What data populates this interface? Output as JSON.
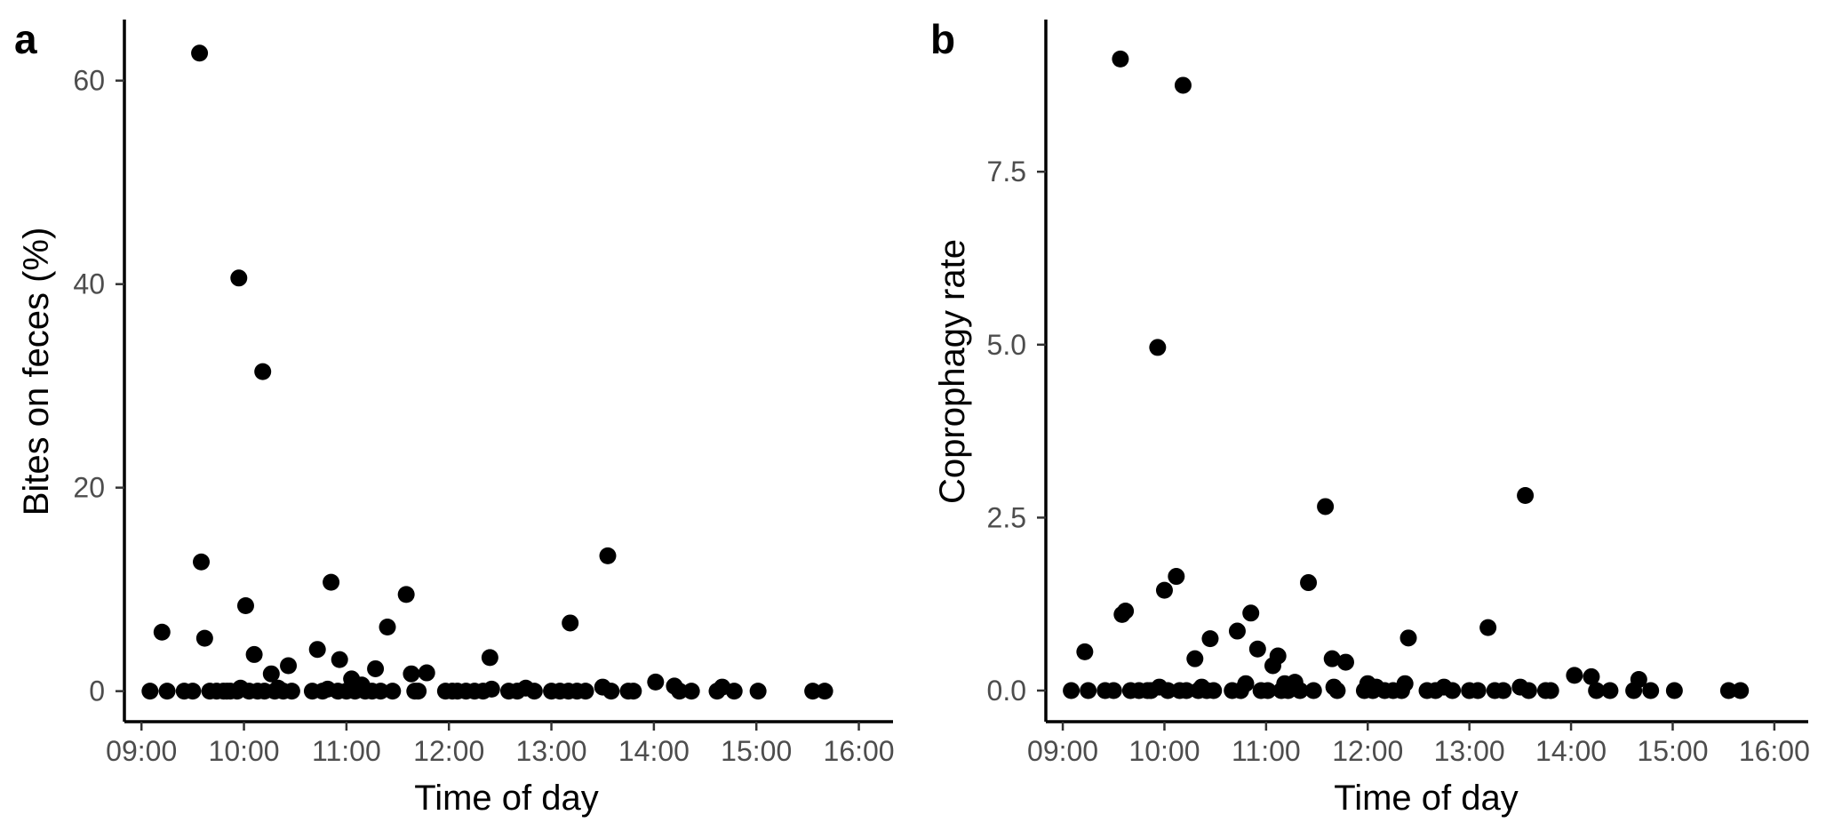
{
  "chart_data": [
    {
      "type": "scatter",
      "panel_label": "a",
      "xlabel": "Time of day",
      "ylabel": "Bites on feces (%)",
      "xlim": [
        "08:50",
        "16:20"
      ],
      "ylim": [
        -3,
        66
      ],
      "x_ticks": [
        "09:00",
        "10:00",
        "11:00",
        "12:00",
        "13:00",
        "14:00",
        "15:00",
        "16:00"
      ],
      "y_ticks": [
        0,
        20,
        40,
        60
      ],
      "grid": false,
      "marker_color": "#000000",
      "points": [
        {
          "x": "09:05",
          "y": 0
        },
        {
          "x": "09:12",
          "y": 5.8
        },
        {
          "x": "09:15",
          "y": 0
        },
        {
          "x": "09:25",
          "y": 0
        },
        {
          "x": "09:30",
          "y": 0
        },
        {
          "x": "09:34",
          "y": 62.7
        },
        {
          "x": "09:35",
          "y": 12.7
        },
        {
          "x": "09:37",
          "y": 5.2
        },
        {
          "x": "09:40",
          "y": 0
        },
        {
          "x": "09:44",
          "y": 0
        },
        {
          "x": "09:48",
          "y": 0
        },
        {
          "x": "09:50",
          "y": 0
        },
        {
          "x": "09:52",
          "y": 0
        },
        {
          "x": "09:56",
          "y": 0
        },
        {
          "x": "09:57",
          "y": 40.6
        },
        {
          "x": "09:58",
          "y": 0.3
        },
        {
          "x": "10:01",
          "y": 8.4
        },
        {
          "x": "10:03",
          "y": 0
        },
        {
          "x": "10:06",
          "y": 3.6
        },
        {
          "x": "10:08",
          "y": 0
        },
        {
          "x": "10:11",
          "y": 31.4
        },
        {
          "x": "10:12",
          "y": 0
        },
        {
          "x": "10:16",
          "y": 1.7
        },
        {
          "x": "10:18",
          "y": 0
        },
        {
          "x": "10:20",
          "y": 0.3
        },
        {
          "x": "10:23",
          "y": 0
        },
        {
          "x": "10:26",
          "y": 2.5
        },
        {
          "x": "10:28",
          "y": 0
        },
        {
          "x": "10:40",
          "y": 0
        },
        {
          "x": "10:43",
          "y": 4.1
        },
        {
          "x": "10:46",
          "y": 0
        },
        {
          "x": "10:49",
          "y": 0.2
        },
        {
          "x": "10:51",
          "y": 10.7
        },
        {
          "x": "10:55",
          "y": 0
        },
        {
          "x": "10:56",
          "y": 3.1
        },
        {
          "x": "11:00",
          "y": 0
        },
        {
          "x": "11:03",
          "y": 1.2
        },
        {
          "x": "11:05",
          "y": 0
        },
        {
          "x": "11:07",
          "y": 0.5
        },
        {
          "x": "11:09",
          "y": 0.6
        },
        {
          "x": "11:11",
          "y": 0
        },
        {
          "x": "11:15",
          "y": 0
        },
        {
          "x": "11:17",
          "y": 2.2
        },
        {
          "x": "11:20",
          "y": 0
        },
        {
          "x": "11:24",
          "y": 6.3
        },
        {
          "x": "11:27",
          "y": 0
        },
        {
          "x": "11:35",
          "y": 9.5
        },
        {
          "x": "11:38",
          "y": 1.7
        },
        {
          "x": "11:40",
          "y": 0
        },
        {
          "x": "11:42",
          "y": 0
        },
        {
          "x": "11:47",
          "y": 1.8
        },
        {
          "x": "11:58",
          "y": 0
        },
        {
          "x": "12:02",
          "y": 0
        },
        {
          "x": "12:05",
          "y": 0
        },
        {
          "x": "12:10",
          "y": 0
        },
        {
          "x": "12:15",
          "y": 0
        },
        {
          "x": "12:20",
          "y": 0
        },
        {
          "x": "12:24",
          "y": 3.3
        },
        {
          "x": "12:25",
          "y": 0.2
        },
        {
          "x": "12:35",
          "y": 0
        },
        {
          "x": "12:40",
          "y": 0
        },
        {
          "x": "12:45",
          "y": 0.3
        },
        {
          "x": "12:50",
          "y": 0
        },
        {
          "x": "13:00",
          "y": 0
        },
        {
          "x": "13:05",
          "y": 0
        },
        {
          "x": "13:10",
          "y": 0
        },
        {
          "x": "13:11",
          "y": 6.7
        },
        {
          "x": "13:15",
          "y": 0
        },
        {
          "x": "13:20",
          "y": 0
        },
        {
          "x": "13:30",
          "y": 0.4
        },
        {
          "x": "13:33",
          "y": 13.3
        },
        {
          "x": "13:35",
          "y": 0
        },
        {
          "x": "13:45",
          "y": 0
        },
        {
          "x": "13:48",
          "y": 0
        },
        {
          "x": "14:01",
          "y": 0.9
        },
        {
          "x": "14:12",
          "y": 0.5
        },
        {
          "x": "14:15",
          "y": 0
        },
        {
          "x": "14:22",
          "y": 0
        },
        {
          "x": "14:37",
          "y": 0
        },
        {
          "x": "14:40",
          "y": 0.4
        },
        {
          "x": "14:47",
          "y": 0
        },
        {
          "x": "15:01",
          "y": 0
        },
        {
          "x": "15:33",
          "y": 0
        },
        {
          "x": "15:40",
          "y": 0
        }
      ]
    },
    {
      "type": "scatter",
      "panel_label": "b",
      "xlabel": "Time of day",
      "ylabel": "Coprophagy rate",
      "xlim": [
        "08:50",
        "16:20"
      ],
      "ylim": [
        -0.45,
        9.7
      ],
      "x_ticks": [
        "09:00",
        "10:00",
        "11:00",
        "12:00",
        "13:00",
        "14:00",
        "15:00",
        "16:00"
      ],
      "y_ticks": [
        "0.0",
        "2.5",
        "5.0",
        "7.5"
      ],
      "grid": false,
      "marker_color": "#000000",
      "points": [
        {
          "x": "09:05",
          "y": 0
        },
        {
          "x": "09:13",
          "y": 0.56
        },
        {
          "x": "09:15",
          "y": 0
        },
        {
          "x": "09:25",
          "y": 0
        },
        {
          "x": "09:30",
          "y": 0
        },
        {
          "x": "09:34",
          "y": 9.13
        },
        {
          "x": "09:35",
          "y": 1.1
        },
        {
          "x": "09:37",
          "y": 1.15
        },
        {
          "x": "09:40",
          "y": 0
        },
        {
          "x": "09:45",
          "y": 0
        },
        {
          "x": "09:50",
          "y": 0
        },
        {
          "x": "09:52",
          "y": 0
        },
        {
          "x": "09:56",
          "y": 4.96
        },
        {
          "x": "09:57",
          "y": 0.05
        },
        {
          "x": "10:00",
          "y": 1.45
        },
        {
          "x": "10:02",
          "y": 0
        },
        {
          "x": "10:07",
          "y": 1.65
        },
        {
          "x": "10:09",
          "y": 0
        },
        {
          "x": "10:11",
          "y": 8.75
        },
        {
          "x": "10:13",
          "y": 0
        },
        {
          "x": "10:18",
          "y": 0.46
        },
        {
          "x": "10:20",
          "y": 0
        },
        {
          "x": "10:22",
          "y": 0.05
        },
        {
          "x": "10:25",
          "y": 0
        },
        {
          "x": "10:27",
          "y": 0.75
        },
        {
          "x": "10:29",
          "y": 0
        },
        {
          "x": "10:40",
          "y": 0
        },
        {
          "x": "10:43",
          "y": 0.86
        },
        {
          "x": "10:45",
          "y": 0
        },
        {
          "x": "10:48",
          "y": 0.1
        },
        {
          "x": "10:51",
          "y": 1.12
        },
        {
          "x": "10:55",
          "y": 0.6
        },
        {
          "x": "10:57",
          "y": 0
        },
        {
          "x": "11:01",
          "y": 0
        },
        {
          "x": "11:04",
          "y": 0.36
        },
        {
          "x": "11:07",
          "y": 0.5
        },
        {
          "x": "11:09",
          "y": 0
        },
        {
          "x": "11:11",
          "y": 0.1
        },
        {
          "x": "11:13",
          "y": 0
        },
        {
          "x": "11:17",
          "y": 0.12
        },
        {
          "x": "11:20",
          "y": 0
        },
        {
          "x": "11:25",
          "y": 1.56
        },
        {
          "x": "11:28",
          "y": 0
        },
        {
          "x": "11:35",
          "y": 2.66
        },
        {
          "x": "11:39",
          "y": 0.46
        },
        {
          "x": "11:40",
          "y": 0.05
        },
        {
          "x": "11:42",
          "y": 0
        },
        {
          "x": "11:47",
          "y": 0.41
        },
        {
          "x": "11:58",
          "y": 0
        },
        {
          "x": "12:00",
          "y": 0.1
        },
        {
          "x": "12:03",
          "y": 0
        },
        {
          "x": "12:05",
          "y": 0.05
        },
        {
          "x": "12:10",
          "y": 0
        },
        {
          "x": "12:15",
          "y": 0
        },
        {
          "x": "12:20",
          "y": 0
        },
        {
          "x": "12:22",
          "y": 0.1
        },
        {
          "x": "12:24",
          "y": 0.76
        },
        {
          "x": "12:35",
          "y": 0
        },
        {
          "x": "12:40",
          "y": 0
        },
        {
          "x": "12:45",
          "y": 0.05
        },
        {
          "x": "12:50",
          "y": 0
        },
        {
          "x": "13:00",
          "y": 0
        },
        {
          "x": "13:05",
          "y": 0
        },
        {
          "x": "13:11",
          "y": 0.91
        },
        {
          "x": "13:15",
          "y": 0
        },
        {
          "x": "13:20",
          "y": 0
        },
        {
          "x": "13:30",
          "y": 0.05
        },
        {
          "x": "13:33",
          "y": 2.82
        },
        {
          "x": "13:35",
          "y": 0
        },
        {
          "x": "13:45",
          "y": 0
        },
        {
          "x": "13:48",
          "y": 0
        },
        {
          "x": "14:02",
          "y": 0.22
        },
        {
          "x": "14:12",
          "y": 0.2
        },
        {
          "x": "14:15",
          "y": 0
        },
        {
          "x": "14:23",
          "y": 0
        },
        {
          "x": "14:37",
          "y": 0
        },
        {
          "x": "14:40",
          "y": 0.16
        },
        {
          "x": "14:47",
          "y": 0
        },
        {
          "x": "15:01",
          "y": 0
        },
        {
          "x": "15:33",
          "y": 0
        },
        {
          "x": "15:40",
          "y": 0
        }
      ]
    }
  ]
}
